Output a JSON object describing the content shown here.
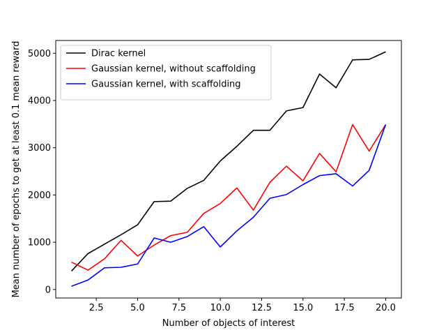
{
  "chart_data": {
    "type": "line",
    "title": "",
    "xlabel": "Number of objects of interest",
    "ylabel": "Mean number of epochs to get at least 0.1 mean reward",
    "xlim": [
      0.05,
      20.95
    ],
    "ylim": [
      -180,
      5270
    ],
    "xticks": [
      2.5,
      5.0,
      7.5,
      10.0,
      12.5,
      15.0,
      17.5,
      20.0
    ],
    "xtick_labels": [
      "2.5",
      "5.0",
      "7.5",
      "10.0",
      "12.5",
      "15.0",
      "17.5",
      "20.0"
    ],
    "yticks": [
      0,
      1000,
      2000,
      3000,
      4000,
      5000
    ],
    "ytick_labels": [
      "0",
      "1000",
      "2000",
      "3000",
      "4000",
      "5000"
    ],
    "grid": false,
    "legend_position": "top-left",
    "x": [
      1,
      2,
      3,
      4,
      5,
      6,
      7,
      8,
      9,
      10,
      11,
      12,
      13,
      14,
      15,
      16,
      17,
      18,
      19,
      20
    ],
    "series": [
      {
        "name": "Dirac kernel",
        "color": "#000000",
        "values": [
          390,
          760,
          960,
          1160,
          1370,
          1860,
          1870,
          2140,
          2310,
          2720,
          3030,
          3370,
          3370,
          3780,
          3850,
          4560,
          4270,
          4860,
          4870,
          5030
        ]
      },
      {
        "name": "Gaussian kernel, without scaffolding",
        "color": "#ff0000",
        "values": [
          580,
          410,
          650,
          1040,
          710,
          940,
          1140,
          1210,
          1610,
          1820,
          2150,
          1680,
          2270,
          2610,
          2300,
          2880,
          2490,
          3490,
          2930,
          3490
        ]
      },
      {
        "name": "Gaussian kernel, with scaffolding",
        "color": "#0000ff",
        "values": [
          70,
          200,
          460,
          470,
          540,
          1090,
          1000,
          1120,
          1330,
          900,
          1240,
          1530,
          1930,
          2010,
          2220,
          2410,
          2450,
          2190,
          2520,
          3490
        ]
      }
    ]
  }
}
